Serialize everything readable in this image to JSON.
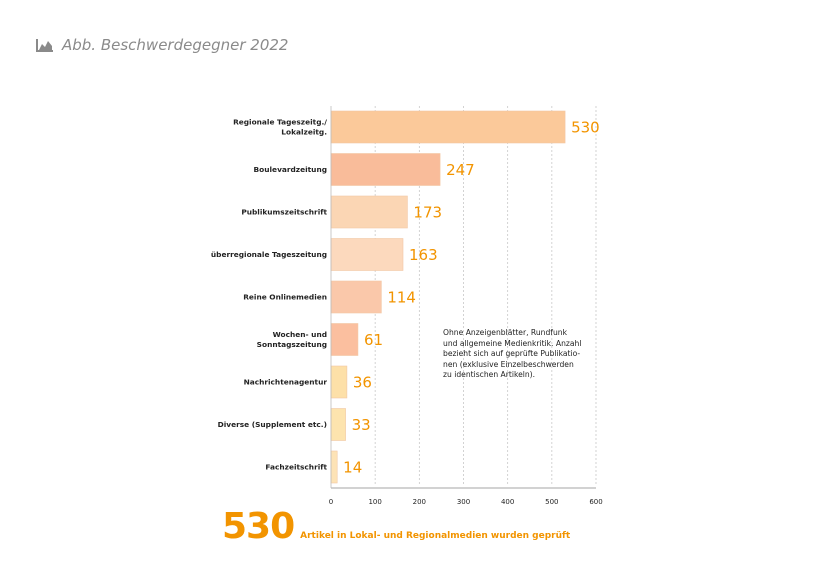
{
  "header": {
    "title": "Abb. Beschwerdegegner 2022",
    "icon": "area-chart-icon",
    "color": "#8a8a8a"
  },
  "chart_data": {
    "type": "bar",
    "orientation": "horizontal",
    "title": "",
    "xlabel": "",
    "ylabel": "",
    "categories": [
      "Regionale Tageszeitg./\nLokalzeitg.",
      "Boulevardzeitung",
      "Publikumszeitschrift",
      "überregionale Tageszeitung",
      "Reine Onlinemedien",
      "Wochen- und\nSonntagszeitung",
      "Nachrichtenagentur",
      "Diverse (Supplement etc.)",
      "Fachzeitschrift"
    ],
    "values": [
      530,
      247,
      173,
      163,
      114,
      61,
      36,
      33,
      14
    ],
    "value_labels": [
      "530",
      "247",
      "173",
      "163",
      "114",
      "61",
      "36",
      "33",
      "14"
    ],
    "xlim": [
      0,
      600
    ],
    "xticks": [
      0,
      100,
      200,
      300,
      400,
      500,
      600
    ],
    "grid": "vertical dashed",
    "bar_colors": [
      "#fbc99a",
      "#f9bc9a",
      "#fbd6b4",
      "#fcd9bd",
      "#fac8aa",
      "#fbbf9f",
      "#fde0a8",
      "#fde4ae",
      "#fde3b6"
    ],
    "value_label_color": "#f29400"
  },
  "note": {
    "text": "Ohne Anzeigenblätter, Rundfunk\nund allgemeine Medienkritik. Anzahl\nbezieht sich auf geprüfte Publikatio-\nnen (exklusive Einzelbeschwerden\nzu identischen Artikeln)."
  },
  "footer": {
    "number": "530",
    "text": "Artikel in Lokal- und Regionalmedien wurden geprüft",
    "color": "#f29400"
  }
}
